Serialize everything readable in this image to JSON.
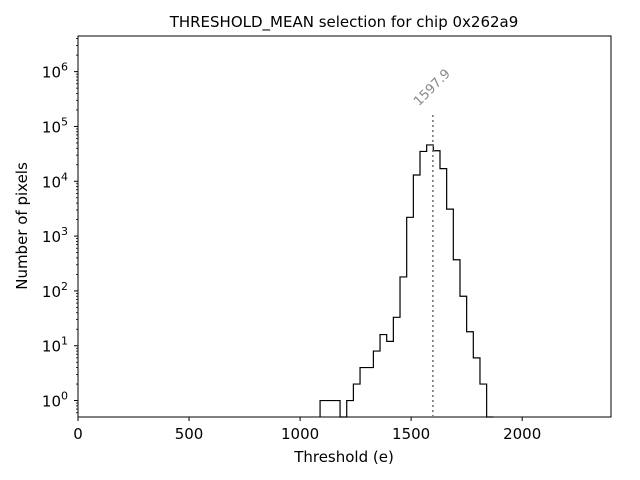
{
  "chart_data": {
    "type": "histogram",
    "title": "THRESHOLD_MEAN selection for chip 0x262a9",
    "xlabel": "Threshold (e)",
    "ylabel": "Number of pixels",
    "xlim": [
      0,
      2400
    ],
    "ylim_log10": [
      -0.3,
      6.65
    ],
    "x_ticks": [
      {
        "value": 0,
        "label": "0"
      },
      {
        "value": 500,
        "label": "500"
      },
      {
        "value": 1000,
        "label": "1000"
      },
      {
        "value": 1500,
        "label": "1500"
      },
      {
        "value": 2000,
        "label": "2000"
      }
    ],
    "y_ticks": [
      {
        "exp": 0,
        "base": "10",
        "sup": "0"
      },
      {
        "exp": 1,
        "base": "10",
        "sup": "1"
      },
      {
        "exp": 2,
        "base": "10",
        "sup": "2"
      },
      {
        "exp": 3,
        "base": "10",
        "sup": "3"
      },
      {
        "exp": 4,
        "base": "10",
        "sup": "4"
      },
      {
        "exp": 5,
        "base": "10",
        "sup": "5"
      },
      {
        "exp": 6,
        "base": "10",
        "sup": "6"
      }
    ],
    "bin_edges": [
      1090,
      1180,
      1210,
      1240,
      1270,
      1300,
      1330,
      1360,
      1390,
      1420,
      1450,
      1480,
      1510,
      1540,
      1570,
      1600,
      1630,
      1660,
      1690,
      1720,
      1750,
      1780,
      1810,
      1840,
      1870
    ],
    "counts": [
      1,
      0,
      1,
      2,
      4,
      4,
      8,
      16,
      12,
      33,
      180,
      2200,
      13000,
      35000,
      46000,
      36000,
      17000,
      3100,
      370,
      80,
      18,
      6,
      2,
      0
    ],
    "marker": {
      "value": 1597.9,
      "label": "1597.9",
      "top_count": 180000
    }
  }
}
